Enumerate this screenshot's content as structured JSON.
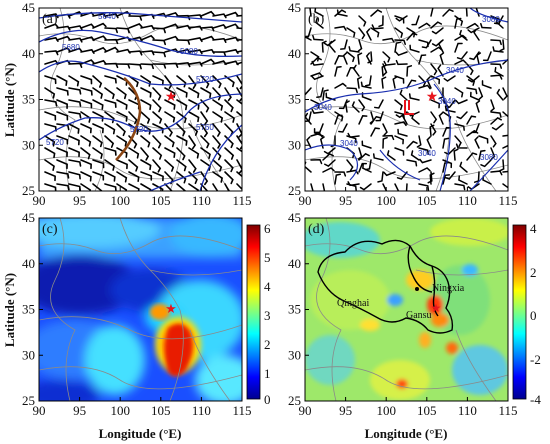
{
  "axes": {
    "ylabel": "Latitude (°N)",
    "xlabel": "Longitude (°E)",
    "x_ticks": [
      "90",
      "95",
      "100",
      "105",
      "110",
      "115"
    ],
    "y_ticks": [
      "45",
      "40",
      "35",
      "30",
      "25"
    ]
  },
  "panels": {
    "a": {
      "label": "(a)",
      "contour_labels": [
        "5640",
        "5680",
        "5680",
        "5720",
        "5720",
        "5760",
        "5720"
      ]
    },
    "b": {
      "label": "(b)",
      "contour_labels": [
        "3080",
        "3040",
        "3040",
        "3040",
        "3040",
        "3040",
        "3080"
      ]
    },
    "c": {
      "label": "(c)",
      "colorbar_ticks": [
        "6",
        "5",
        "4",
        "3",
        "2",
        "1",
        "0"
      ]
    },
    "d": {
      "label": "(d)",
      "colorbar_ticks": [
        "4",
        "2",
        "0",
        "-2",
        "-4"
      ],
      "regions": {
        "qinghai": "Qinghai",
        "ningxia": "Ningxia",
        "gansu": "Gansu"
      }
    }
  },
  "marker": {
    "name": "star",
    "color": "#e8141c"
  },
  "colors": {
    "contour": "#1a2fb0",
    "trough": "#8b4513",
    "boundary": "#888888"
  }
}
